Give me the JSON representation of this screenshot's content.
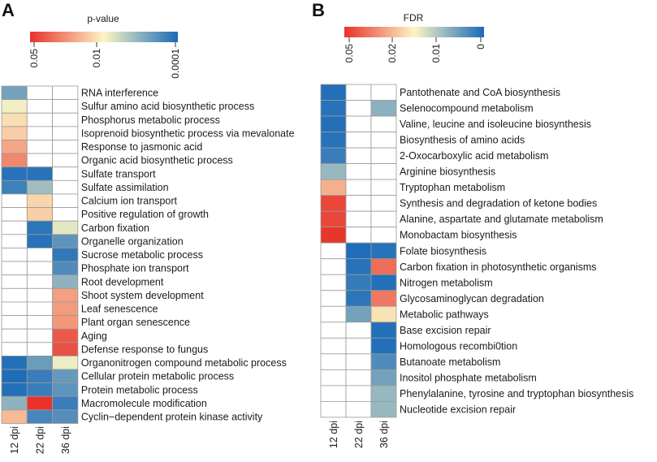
{
  "panel_a": {
    "letter": "A",
    "legend_title": "p-value",
    "legend_ticks": [
      "0.05",
      "0.01",
      "0.0001"
    ]
  },
  "panel_b": {
    "letter": "B",
    "legend_title": "FDR",
    "legend_ticks": [
      "0.05",
      "0.02",
      "0.01",
      "0"
    ]
  },
  "colors": {
    "scale_low": "#e8322a",
    "scale_mid": "#fbf5c4",
    "scale_high": "#1a6ab8",
    "empty": "#ffffff",
    "grid": "#9a9a9a",
    "accent_red": "#e8322a",
    "accent_blue": "#1a6ab8"
  },
  "chart_data": [
    {
      "type": "heatmap",
      "panel": "A",
      "title": "",
      "legend_title": "p-value",
      "value_note": "color intensity 0 = p 0.05 (red) ... 1 = p 0.0001 (blue); null = not significant (white)",
      "columns": [
        "12 dpi",
        "22 dpi",
        "36 dpi"
      ],
      "rows": [
        "RNA interference",
        "Sulfur amino acid biosynthetic process",
        "Phosphorus metabolic process",
        "Isoprenoid biosynthetic process via mevalonate",
        "Response to jasmonic acid",
        "Organic acid biosynthetic process",
        "Sulfate transport",
        "Sulfate assimilation",
        "Calcium ion transport",
        "Positive regulation of growth",
        "Carbon fixation",
        "Organelle organization",
        "Sucrose metabolic process",
        "Phosphate ion transport",
        "Root development",
        "Shoot system development",
        "Leaf senescence",
        "Plant organ senescence",
        "Aging",
        "Defense response to fungus",
        "Organonitrogen compound metabolic process",
        "Cellular protein metabolic process",
        "Protein metabolic process",
        "Macromolecule modification",
        "Cyclin−dependent protein kinase activity"
      ],
      "values": [
        [
          0.8,
          null,
          null
        ],
        [
          0.52,
          null,
          null
        ],
        [
          0.44,
          null,
          null
        ],
        [
          0.4,
          null,
          null
        ],
        [
          0.3,
          null,
          null
        ],
        [
          0.22,
          null,
          null
        ],
        [
          0.97,
          0.97,
          null
        ],
        [
          0.92,
          0.7,
          null
        ],
        [
          null,
          0.42,
          null
        ],
        [
          null,
          0.4,
          null
        ],
        [
          null,
          0.96,
          0.55
        ],
        [
          null,
          0.97,
          0.85
        ],
        [
          null,
          null,
          0.95
        ],
        [
          null,
          null,
          0.88
        ],
        [
          null,
          null,
          0.74
        ],
        [
          null,
          null,
          0.28
        ],
        [
          null,
          null,
          0.27
        ],
        [
          null,
          null,
          0.26
        ],
        [
          null,
          null,
          0.1
        ],
        [
          null,
          null,
          0.08
        ],
        [
          0.98,
          0.82,
          0.53
        ],
        [
          0.99,
          0.93,
          0.83
        ],
        [
          0.98,
          0.93,
          0.85
        ],
        [
          0.74,
          0.0,
          0.93
        ],
        [
          0.35,
          0.9,
          0.87
        ]
      ]
    },
    {
      "type": "heatmap",
      "panel": "B",
      "title": "",
      "legend_title": "FDR",
      "value_note": "color intensity 0 = FDR 0.05 (red) ... 1 = FDR 0 (blue); null = not significant (white)",
      "columns": [
        "12 dpi",
        "22 dpi",
        "36 dpi"
      ],
      "rows": [
        "Pantothenate and CoA biosynthesis",
        "Selenocompound metabolism",
        "Valine, leucine and isoleucine biosynthesis",
        "Biosynthesis of amino acids",
        "2-Oxocarboxylic acid metabolism",
        "Arginine biosynthesis",
        "Tryptophan metabolism",
        "Synthesis and degradation of ketone bodies",
        "Alanine, aspartate and glutamate metabolism",
        "Monobactam biosynthesis",
        "Folate biosynthesis",
        "Carbon fixation in photosynthetic organisms",
        "Nitrogen metabolism",
        "Glycosaminoglycan degradation",
        "Metabolic pathways",
        "Base excision repair",
        "Homologous recombi0tion",
        "Butanoate metabolism",
        "Inositol phosphate metabolism",
        "Phenylalanine, tyrosine and tryptophan biosynthesis",
        "Nucleotide excision repair"
      ],
      "values": [
        [
          0.98,
          null,
          null
        ],
        [
          0.97,
          null,
          0.75
        ],
        [
          0.98,
          null,
          null
        ],
        [
          0.97,
          null,
          null
        ],
        [
          0.93,
          null,
          null
        ],
        [
          0.72,
          null,
          null
        ],
        [
          0.32,
          null,
          null
        ],
        [
          0.05,
          null,
          null
        ],
        [
          0.05,
          null,
          null
        ],
        [
          0.01,
          null,
          null
        ],
        [
          null,
          0.99,
          0.97
        ],
        [
          null,
          0.97,
          0.15
        ],
        [
          null,
          0.94,
          0.98
        ],
        [
          null,
          0.96,
          0.18
        ],
        [
          null,
          0.8,
          0.45
        ],
        [
          null,
          null,
          0.98
        ],
        [
          null,
          null,
          0.98
        ],
        [
          null,
          null,
          0.88
        ],
        [
          null,
          null,
          0.8
        ],
        [
          null,
          null,
          0.72
        ],
        [
          null,
          null,
          0.72
        ]
      ]
    }
  ]
}
